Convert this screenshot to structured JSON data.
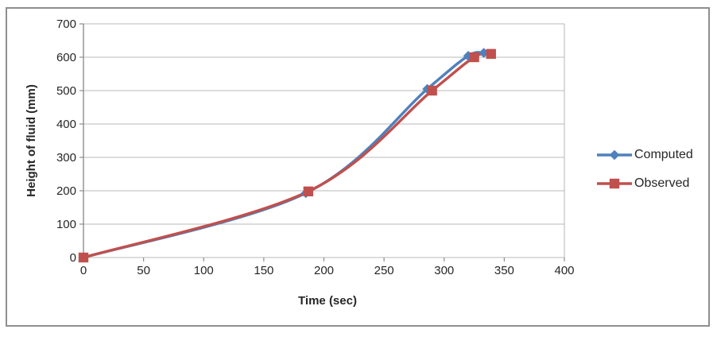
{
  "figure": {
    "background": "#ffffff",
    "frame_border_color": "#8f8f8f",
    "grid_color": "#c6c6c6",
    "axis_color": "#8e8e8e",
    "text_color": "#262626"
  },
  "chart_data": {
    "type": "line",
    "title": "",
    "xlabel": "Time (sec)",
    "ylabel": "Height of fluid (mm)",
    "xlim": [
      0,
      400
    ],
    "ylim": [
      0,
      700
    ],
    "x_ticks": [
      0,
      50,
      100,
      150,
      200,
      250,
      300,
      350,
      400
    ],
    "y_ticks": [
      0,
      100,
      200,
      300,
      400,
      500,
      600,
      700
    ],
    "grid": "horizontal",
    "smooth_lines": true,
    "legend_position": "right-outside",
    "series": [
      {
        "name": "Computed",
        "color": "#4F81BD",
        "marker": "diamond",
        "points": [
          [
            0,
            0
          ],
          [
            185,
            193
          ],
          [
            286,
            505
          ],
          [
            320,
            604
          ],
          [
            333,
            613
          ]
        ]
      },
      {
        "name": "Observed",
        "color": "#C0504D",
        "marker": "square",
        "points": [
          [
            0,
            0
          ],
          [
            187,
            198
          ],
          [
            290,
            500
          ],
          [
            325,
            600
          ],
          [
            339,
            610
          ]
        ]
      }
    ]
  }
}
